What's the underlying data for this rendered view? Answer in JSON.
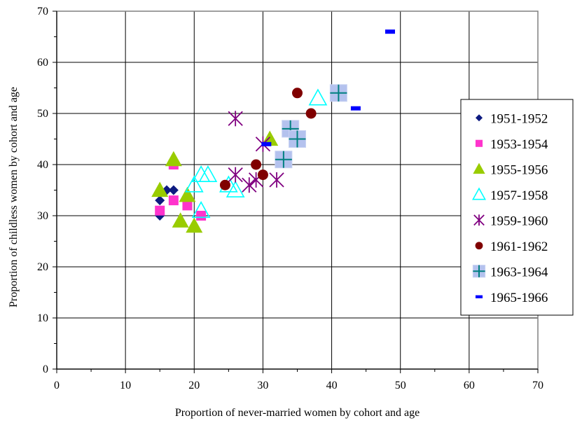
{
  "chart_data": {
    "type": "scatter",
    "xlabel": "Proportion of never-married women by cohort and age",
    "ylabel": "Proportion of childless women by cohort and age",
    "xlim": [
      0,
      70
    ],
    "ylim": [
      0,
      70
    ],
    "x_ticks": [
      "0",
      "10",
      "20",
      "30",
      "40",
      "50",
      "60",
      "70"
    ],
    "y_ticks": [
      "0",
      "10",
      "20",
      "30",
      "40",
      "50",
      "60",
      "70"
    ],
    "grid": true,
    "legend_position": "right",
    "series": [
      {
        "name": "1951-1952",
        "marker": "diamond",
        "color": "#0d1a80",
        "points": [
          [
            15,
            30
          ],
          [
            15,
            33
          ],
          [
            16,
            35
          ],
          [
            17,
            35
          ]
        ]
      },
      {
        "name": "1953-1954",
        "marker": "square",
        "color": "#ff33cc",
        "points": [
          [
            15,
            31
          ],
          [
            17,
            33
          ],
          [
            17,
            40
          ],
          [
            19,
            32
          ],
          [
            21,
            30
          ]
        ]
      },
      {
        "name": "1955-1956",
        "marker": "triangle",
        "color": "#99cc00",
        "points": [
          [
            15,
            35
          ],
          [
            17,
            41
          ],
          [
            18,
            29
          ],
          [
            19,
            34
          ],
          [
            20,
            28
          ],
          [
            31,
            45
          ]
        ]
      },
      {
        "name": "1957-1958",
        "marker": "triangle-open",
        "color": "#00ffff",
        "points": [
          [
            20,
            36
          ],
          [
            21,
            38
          ],
          [
            21,
            31
          ],
          [
            22,
            38
          ],
          [
            25,
            36
          ],
          [
            26,
            35
          ],
          [
            38,
            53
          ]
        ]
      },
      {
        "name": "1959-1960",
        "marker": "star",
        "color": "#800080",
        "points": [
          [
            26,
            49
          ],
          [
            26,
            38
          ],
          [
            28,
            36
          ],
          [
            29,
            37
          ],
          [
            30,
            44
          ],
          [
            32,
            37
          ]
        ]
      },
      {
        "name": "1961-1962",
        "marker": "circle",
        "color": "#800000",
        "points": [
          [
            24.5,
            36
          ],
          [
            29,
            40
          ],
          [
            30,
            38
          ],
          [
            35,
            54
          ],
          [
            37,
            50
          ]
        ]
      },
      {
        "name": "1963-1964",
        "marker": "plus-box",
        "color": "#008080",
        "points": [
          [
            33,
            41
          ],
          [
            34,
            47
          ],
          [
            35,
            45
          ],
          [
            41,
            54
          ]
        ]
      },
      {
        "name": "1965-1966",
        "marker": "dash",
        "color": "#0000ff",
        "points": [
          [
            30.5,
            44
          ],
          [
            43.5,
            51
          ],
          [
            48.5,
            66
          ]
        ]
      }
    ]
  }
}
